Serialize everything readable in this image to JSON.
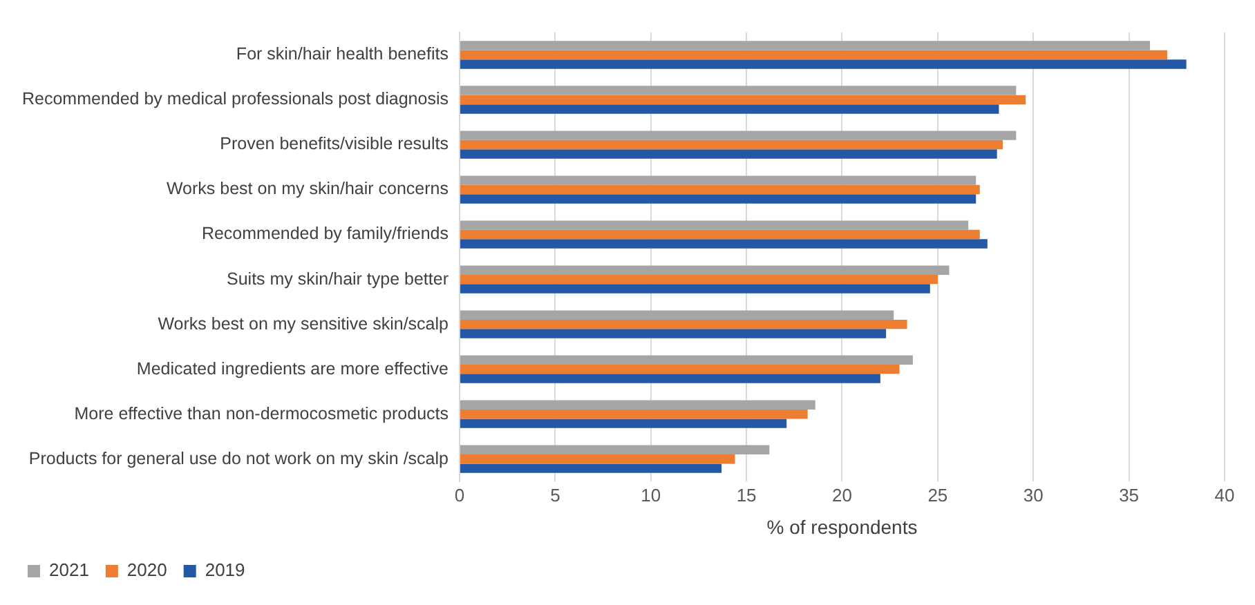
{
  "chart_data": {
    "type": "bar",
    "orientation": "horizontal",
    "xlabel": "% of respondents",
    "categories": [
      "For skin/hair health benefits",
      "Recommended by medical professionals post diagnosis",
      "Proven benefits/visible results",
      "Works best on my skin/hair concerns",
      "Recommended by family/friends",
      "Suits my skin/hair type better",
      "Works best on my sensitive skin/scalp",
      "Medicated ingredients are more effective",
      "More effective than non-dermocosmetic products",
      "Products for general use do not work on my skin /scalp"
    ],
    "series": [
      {
        "name": "2021",
        "color": "#a5a5a5",
        "values": [
          36.1,
          29.1,
          29.1,
          27.0,
          26.6,
          25.6,
          22.7,
          23.7,
          18.6,
          16.2
        ]
      },
      {
        "name": "2020",
        "color": "#ed7d31",
        "values": [
          37.0,
          29.6,
          28.4,
          27.2,
          27.2,
          25.0,
          23.4,
          23.0,
          18.2,
          14.4
        ]
      },
      {
        "name": "2019",
        "color": "#2458a6",
        "values": [
          38.0,
          28.2,
          28.1,
          27.0,
          27.6,
          24.6,
          22.3,
          22.0,
          17.1,
          13.7
        ]
      }
    ],
    "xlim": [
      0,
      40
    ],
    "xticks": [
      0,
      5,
      10,
      15,
      20,
      25,
      30,
      35,
      40
    ],
    "grid": "x",
    "legend": "bottom"
  }
}
